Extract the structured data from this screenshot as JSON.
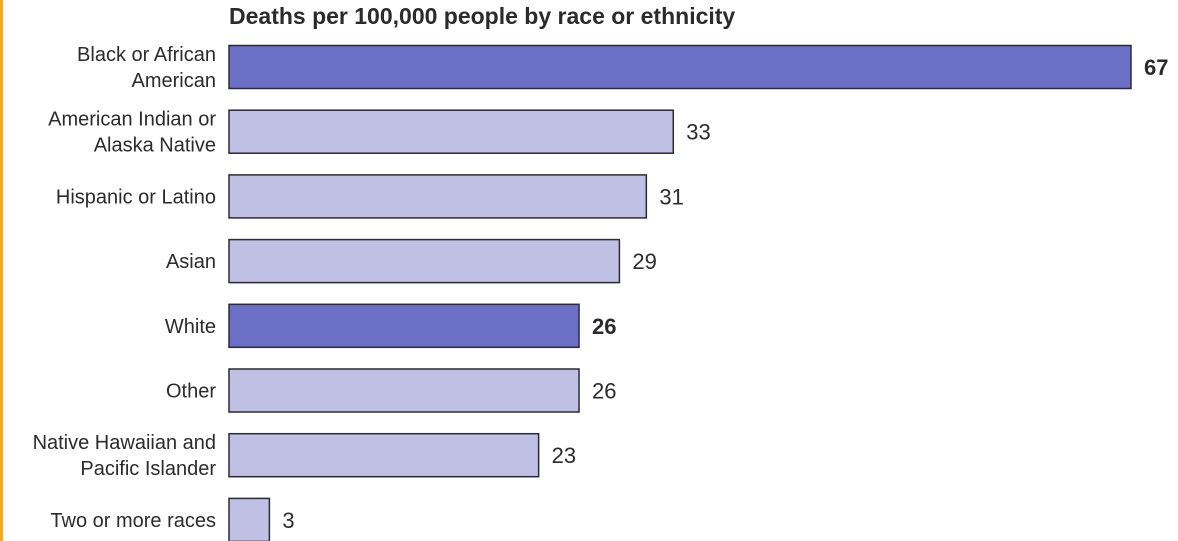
{
  "colors": {
    "highlight_bar": "#6b70c6",
    "regular_bar": "#c0bfe4",
    "bar_stroke": "#2a2a35",
    "text": "#2b2b2b",
    "accent_edge": "#f5a623"
  },
  "chart_data": {
    "type": "bar",
    "orientation": "horizontal",
    "title": "Deaths per 100,000 people by race or ethnicity",
    "categories": [
      [
        "Black or African",
        "American"
      ],
      [
        "American Indian or",
        "Alaska Native"
      ],
      [
        "Hispanic or Latino"
      ],
      [
        "Asian"
      ],
      [
        "White"
      ],
      [
        "Other"
      ],
      [
        "Native Hawaiian and",
        "Pacific Islander"
      ],
      [
        "Two or more races"
      ]
    ],
    "values": [
      67,
      33,
      31,
      29,
      26,
      26,
      23,
      3
    ],
    "highlighted": [
      true,
      false,
      false,
      false,
      true,
      false,
      false,
      false
    ],
    "xlim": [
      0,
      67
    ],
    "grid": false,
    "axes_shown": false
  }
}
